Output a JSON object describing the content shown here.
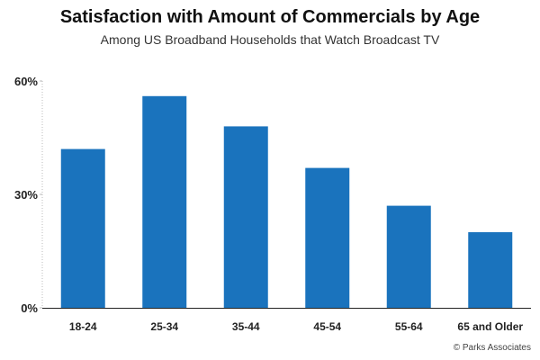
{
  "chart_data": {
    "type": "bar",
    "title": "Satisfaction with Amount of Commercials by Age",
    "subtitle": "Among US Broadband Households that Watch Broadcast TV",
    "xlabel": "",
    "ylabel": "",
    "categories": [
      "18-24",
      "25-34",
      "35-44",
      "45-54",
      "55-64",
      "65 and Older"
    ],
    "values": [
      42,
      56,
      48,
      37,
      27,
      20
    ],
    "ylim": [
      0,
      60
    ],
    "yticks": [
      0,
      30,
      60
    ],
    "ytick_labels": [
      "0%",
      "30%",
      "60%"
    ],
    "bar_color": "#1a73bd",
    "grid": false,
    "legend": "none"
  },
  "watermark": "© Parks Associates"
}
